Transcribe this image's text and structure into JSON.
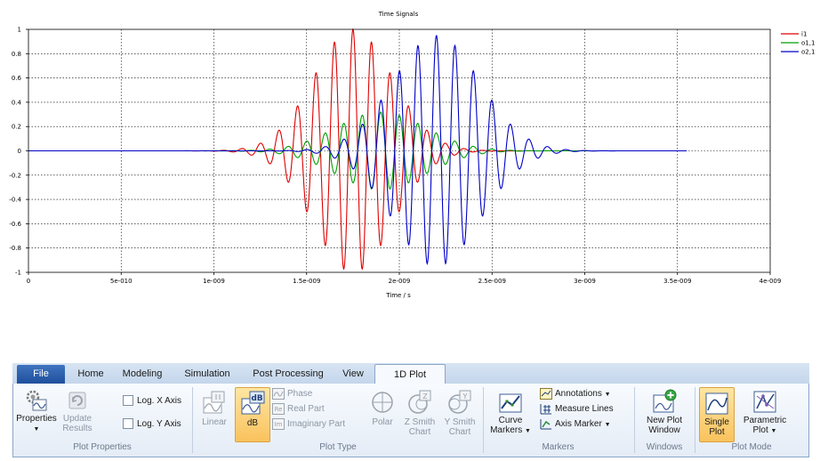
{
  "chart_data": {
    "type": "line",
    "title": "Time Signals",
    "xlabel": "Time / s",
    "ylabel": "",
    "xlim": [
      0,
      4e-09
    ],
    "ylim": [
      -1,
      1
    ],
    "xticks": [
      "0",
      "5e-010",
      "1e-009",
      "1.5e-009",
      "2e-009",
      "2.5e-009",
      "3e-009",
      "3.5e-009",
      "4e-009"
    ],
    "yticks": [
      "1",
      "0.8",
      "0.6",
      "0.4",
      "0.2",
      "0",
      "-0.2",
      "-0.4",
      "-0.6",
      "-0.8",
      "-1"
    ],
    "grid": true,
    "legend_position": "top-right",
    "series": [
      {
        "name": "i1",
        "color": "#e00000",
        "peak_time": 1.75e-09,
        "envelope_width": 3e-10,
        "amplitude": 1.0,
        "carrier_period": 1e-10,
        "start": 6e-10,
        "end": 3.4e-09
      },
      {
        "name": "o1,1",
        "color": "#00a000",
        "peak_time": 1.9e-09,
        "envelope_width": 3.4e-10,
        "amplitude": 0.32,
        "carrier_period": 1e-10,
        "start": 6e-10,
        "end": 3.4e-09
      },
      {
        "name": "o2,1",
        "color": "#0000c8",
        "peak_time": 2.2e-09,
        "envelope_width": 3.3e-10,
        "amplitude": 0.95,
        "carrier_period": 1e-10,
        "start": 0,
        "end": 3.55e-09
      }
    ]
  },
  "ribbon": {
    "tabs": [
      "File",
      "Home",
      "Modeling",
      "Simulation",
      "Post Processing",
      "View",
      "1D Plot"
    ],
    "active_tab": "1D Plot",
    "groups": {
      "plot_properties": {
        "label": "Plot Properties",
        "properties": "Properties",
        "update_results_1": "Update",
        "update_results_2": "Results",
        "log_x": "Log. X Axis",
        "log_y": "Log. Y Axis"
      },
      "plot_type": {
        "label": "Plot Type",
        "linear": "Linear",
        "db": "dB",
        "phase": "Phase",
        "real_part": "Real Part",
        "imaginary_part": "Imaginary Part",
        "polar": "Polar",
        "z_smith_1": "Z Smith",
        "z_smith_2": "Chart",
        "y_smith_1": "Y Smith",
        "y_smith_2": "Chart"
      },
      "markers": {
        "label": "Markers",
        "curve_markers_1": "Curve",
        "curve_markers_2": "Markers",
        "annotations": "Annotations",
        "measure_lines": "Measure Lines",
        "axis_marker": "Axis Marker"
      },
      "windows": {
        "label": "Windows",
        "new_plot_1": "New Plot",
        "new_plot_2": "Window"
      },
      "plot_mode": {
        "label": "Plot Mode",
        "single_1": "Single",
        "single_2": "Plot",
        "parametric_1": "Parametric",
        "parametric_2": "Plot"
      }
    }
  }
}
